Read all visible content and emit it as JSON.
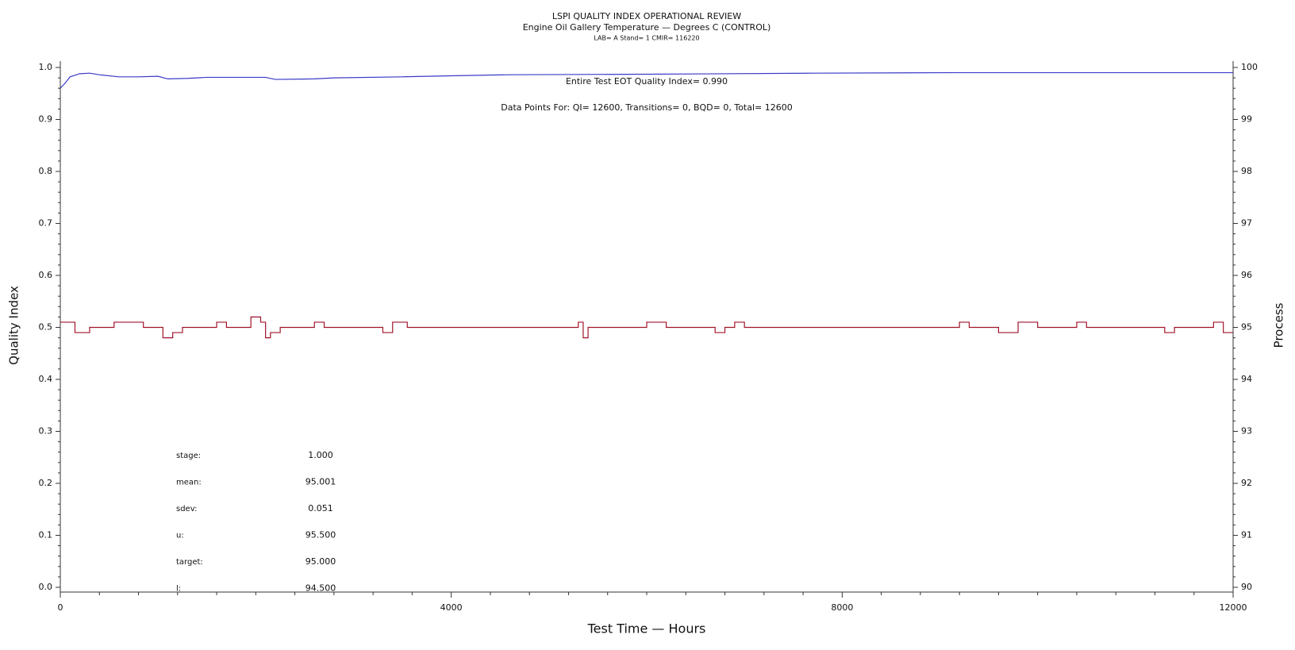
{
  "chart_data": {
    "type": "line",
    "title": "LSPI QUALITY INDEX OPERATIONAL REVIEW",
    "subtitle": "Engine Oil Gallery Temperature — Degrees C (CONTROL)",
    "subtitle2": "LAB= A Stand= 1 CMIR= 116220",
    "xlabel": "Test Time — Hours",
    "ylabel": "Quality Index",
    "y2label": "Process",
    "annotations": [
      "Entire Test EOT Quality Index=   0.990",
      "Data Points For: QI= 12600, Transitions=    0, BQD=    0, Total= 12600"
    ],
    "stats": [
      {
        "label": "stage:",
        "value": "1.000"
      },
      {
        "label": "mean:",
        "value": "95.001"
      },
      {
        "label": "sdev:",
        "value": "0.051"
      },
      {
        "label": "u:",
        "value": "95.500"
      },
      {
        "label": "target:",
        "value": "95.000"
      },
      {
        "label": "l:",
        "value": "94.500"
      }
    ],
    "xlim": [
      0,
      12000
    ],
    "xticks": [
      0,
      4000,
      8000,
      12000
    ],
    "ylim": [
      0,
      1
    ],
    "yticks": [
      {
        "value": 0,
        "label": "0.0"
      },
      0.1,
      0.2,
      0.3,
      0.4,
      0.5,
      0.6,
      0.7,
      0.8,
      0.9,
      {
        "value": 1,
        "label": "1.0"
      }
    ],
    "y2lim": [
      90,
      100
    ],
    "y2ticks": [
      90,
      91,
      92,
      93,
      94,
      95,
      96,
      97,
      98,
      99,
      100
    ],
    "series": [
      {
        "name": "Quality Index",
        "color": "#3a3ac8",
        "axis": "y",
        "x": [
          0,
          50,
          100,
          200,
          300,
          400,
          600,
          800,
          1000,
          1100,
          1300,
          1500,
          2100,
          2200,
          2600,
          2800,
          3500,
          4000,
          4600,
          6000,
          7700,
          9100,
          12000
        ],
        "values": [
          0.96,
          0.97,
          0.982,
          0.988,
          0.989,
          0.986,
          0.982,
          0.982,
          0.983,
          0.978,
          0.979,
          0.981,
          0.981,
          0.977,
          0.978,
          0.98,
          0.982,
          0.984,
          0.986,
          0.987,
          0.989,
          0.99,
          0.99
        ]
      },
      {
        "name": "Engine Oil Gallery Temperature",
        "color": "#a0142a",
        "axis": "y2",
        "x": [
          0,
          150,
          150,
          300,
          300,
          550,
          550,
          850,
          850,
          1050,
          1050,
          1150,
          1150,
          1250,
          1250,
          1600,
          1600,
          1700,
          1700,
          1950,
          1950,
          2050,
          2050,
          2100,
          2100,
          2150,
          2150,
          2250,
          2250,
          2600,
          2600,
          2700,
          2700,
          3300,
          3300,
          3400,
          3400,
          3550,
          3550,
          5300,
          5300,
          5350,
          5350,
          5400,
          5400,
          6000,
          6000,
          6200,
          6200,
          6700,
          6700,
          6800,
          6800,
          6900,
          6900,
          7000,
          7000,
          9200,
          9200,
          9300,
          9300,
          9600,
          9600,
          9800,
          9800,
          10000,
          10000,
          10400,
          10400,
          10500,
          10500,
          11300,
          11300,
          11400,
          11400,
          11800,
          11800,
          11900,
          11900,
          12000
        ],
        "values": [
          95.1,
          95.1,
          94.9,
          94.9,
          95.0,
          95.0,
          95.1,
          95.1,
          95.0,
          95.0,
          94.8,
          94.8,
          94.9,
          94.9,
          95.0,
          95.0,
          95.1,
          95.1,
          95.0,
          95.0,
          95.2,
          95.2,
          95.1,
          95.1,
          94.8,
          94.8,
          94.9,
          94.9,
          95.0,
          95.0,
          95.1,
          95.1,
          95.0,
          95.0,
          94.9,
          94.9,
          95.1,
          95.1,
          95.0,
          95.0,
          95.1,
          95.1,
          94.8,
          94.8,
          95.0,
          95.0,
          95.1,
          95.1,
          95.0,
          95.0,
          94.9,
          94.9,
          95.0,
          95.0,
          95.1,
          95.1,
          95.0,
          95.0,
          95.1,
          95.1,
          95.0,
          95.0,
          94.9,
          94.9,
          95.1,
          95.1,
          95.0,
          95.0,
          95.1,
          95.1,
          95.0,
          95.0,
          94.9,
          94.9,
          95.0,
          95.0,
          95.1,
          95.1,
          94.9,
          94.9
        ]
      }
    ]
  }
}
